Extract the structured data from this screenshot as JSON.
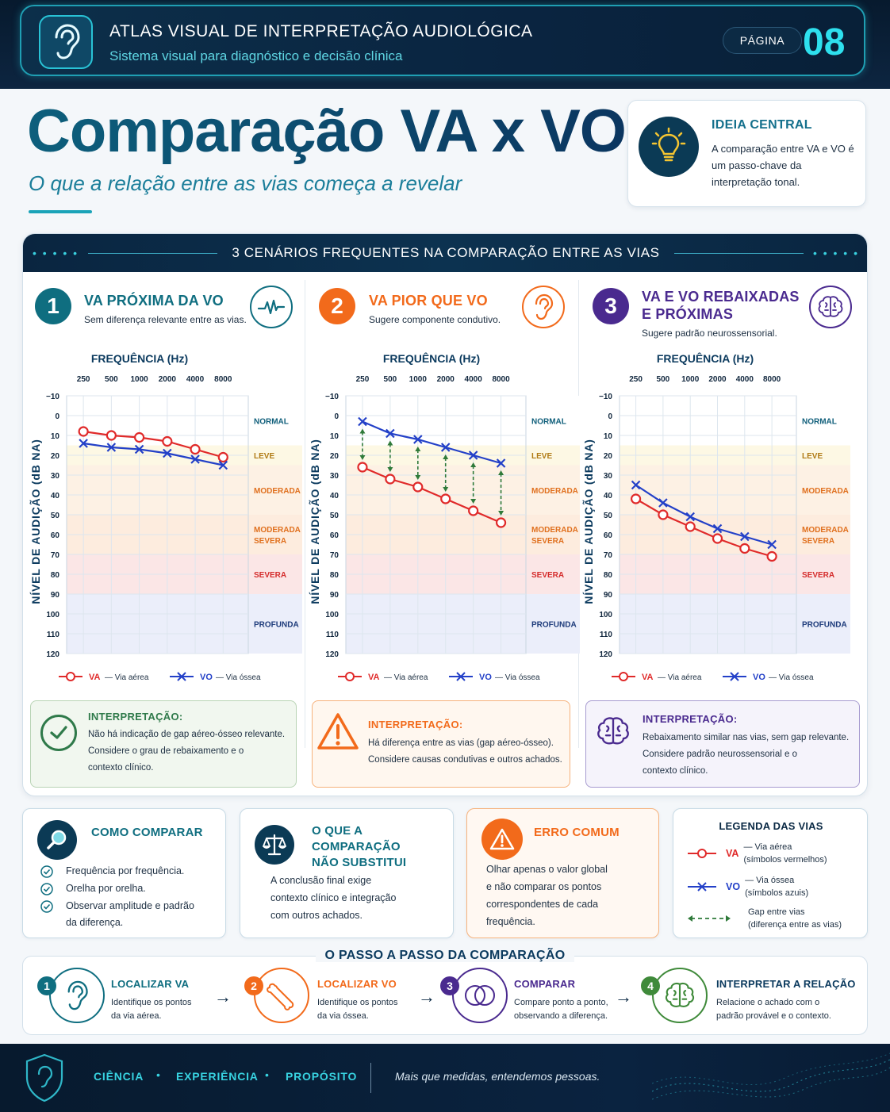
{
  "header": {
    "title": "ATLAS VISUAL DE INTERPRETAÇÃO AUDIOLÓGICA",
    "subtitle": "Sistema visual para diagnóstico e decisão clínica",
    "page_label": "PÁGINA",
    "page_number": "08",
    "icon": "ear-icon"
  },
  "hero": {
    "title": "Comparação VA x VO",
    "subtitle": "O que a relação entre as vias começa a revelar"
  },
  "idea": {
    "title": "IDEIA CENTRAL",
    "text": "A comparação entre VA e VO é um passo-chave da interpretação tonal.",
    "icon": "lightbulb-icon"
  },
  "scenarios": {
    "heading": "3 CENÁRIOS FREQUENTES NA COMPARAÇÃO ENTRE AS VIAS",
    "items": [
      {
        "number": "1",
        "title_lines": [
          "VA PRÓXIMA DA VO"
        ],
        "description": "Sem diferença relevante entre as vias.",
        "icon": "waveform-icon",
        "color": "#0f6e80",
        "interpretation_title": "INTERPRETAÇÃO:",
        "interpretation_lines": [
          "Não há indicação de gap aéreo-ósseo relevante.",
          "Considere o grau de rebaixamento e o",
          "contexto clínico."
        ],
        "interpretation_icon": "check-circle-icon"
      },
      {
        "number": "2",
        "title_lines": [
          "VA PIOR QUE VO"
        ],
        "description": "Sugere componente condutivo.",
        "icon": "ear-icon",
        "color": "#f26a1b",
        "interpretation_title": "INTERPRETAÇÃO:",
        "interpretation_lines": [
          "Há diferença entre as vias (gap aéreo-ósseo).",
          "Considere causas condutivas e outros achados."
        ],
        "interpretation_icon": "warning-icon"
      },
      {
        "number": "3",
        "title_lines": [
          "VA E VO REBAIXADAS",
          "E PRÓXIMAS"
        ],
        "description": "Sugere padrão neurossensorial.",
        "icon": "brain-icon",
        "color": "#4a2a8f",
        "interpretation_title": "INTERPRETAÇÃO:",
        "interpretation_lines": [
          "Rebaixamento similar nas vias, sem gap relevante.",
          "Considere padrão neurossensorial e o",
          "contexto clínico."
        ],
        "interpretation_icon": "brain-icon"
      }
    ]
  },
  "chart_data": [
    {
      "type": "line",
      "title": "FREQUÊNCIA (Hz)",
      "xlabel": "FREQUÊNCIA (Hz)",
      "ylabel": "NÍVEL DE AUDIÇÃO (dB NA)",
      "categories": [
        "250",
        "500",
        "1000",
        "2000",
        "4000",
        "8000"
      ],
      "y_ticks": [
        "−10",
        "0",
        "10",
        "20",
        "30",
        "40",
        "50",
        "60",
        "70",
        "80",
        "90",
        "100",
        "110",
        "120"
      ],
      "ylim": [
        -10,
        120
      ],
      "y_inverted": true,
      "grid": true,
      "bands": [
        {
          "label": "NORMAL",
          "from": -10,
          "to": 15,
          "color": "#ffffff",
          "text_color": "#0f5e7a"
        },
        {
          "label": "LEVE",
          "from": 15,
          "to": 25,
          "color": "#fdf8e4",
          "text_color": "#b07a14"
        },
        {
          "label": "MODERADA",
          "from": 25,
          "to": 50,
          "color": "#fdf1e4",
          "text_color": "#e0701e"
        },
        {
          "label": "MODERADA\nSEVERA",
          "from": 50,
          "to": 70,
          "color": "#fdecde",
          "text_color": "#e0701e"
        },
        {
          "label": "SEVERA",
          "from": 70,
          "to": 90,
          "color": "#fbe6e6",
          "text_color": "#d42b2b"
        },
        {
          "label": "PROFUNDA",
          "from": 90,
          "to": 120,
          "color": "#ebeefa",
          "text_color": "#1c3a7a"
        }
      ],
      "series": [
        {
          "name": "VA",
          "values": [
            8,
            10,
            11,
            13,
            17,
            21
          ],
          "color": "#e02a2a",
          "marker": "circle"
        },
        {
          "name": "VO",
          "values": [
            14,
            16,
            17,
            19,
            22,
            25
          ],
          "color": "#2340c8",
          "marker": "x"
        }
      ],
      "gap_arrows": false,
      "legend": [
        {
          "symbol": "VA",
          "label": "— Via aérea"
        },
        {
          "symbol": "VO",
          "label": "— Via óssea"
        }
      ],
      "legend_position": "bottom"
    },
    {
      "type": "line",
      "title": "FREQUÊNCIA (Hz)",
      "xlabel": "FREQUÊNCIA (Hz)",
      "ylabel": "NÍVEL DE AUDIÇÃO (dB NA)",
      "categories": [
        "250",
        "500",
        "1000",
        "2000",
        "4000",
        "8000"
      ],
      "y_ticks": [
        "−10",
        "0",
        "10",
        "20",
        "30",
        "40",
        "50",
        "60",
        "70",
        "80",
        "90",
        "100",
        "110",
        "120"
      ],
      "ylim": [
        -10,
        120
      ],
      "y_inverted": true,
      "grid": true,
      "bands": [
        {
          "label": "NORMAL",
          "from": -10,
          "to": 15,
          "color": "#ffffff",
          "text_color": "#0f5e7a"
        },
        {
          "label": "LEVE",
          "from": 15,
          "to": 25,
          "color": "#fdf8e4",
          "text_color": "#b07a14"
        },
        {
          "label": "MODERADA",
          "from": 25,
          "to": 50,
          "color": "#fdf1e4",
          "text_color": "#e0701e"
        },
        {
          "label": "MODERADA\nSEVERA",
          "from": 50,
          "to": 70,
          "color": "#fdecde",
          "text_color": "#e0701e"
        },
        {
          "label": "SEVERA",
          "from": 70,
          "to": 90,
          "color": "#fbe6e6",
          "text_color": "#d42b2b"
        },
        {
          "label": "PROFUNDA",
          "from": 90,
          "to": 120,
          "color": "#ebeefa",
          "text_color": "#1c3a7a"
        }
      ],
      "series": [
        {
          "name": "VA",
          "values": [
            26,
            32,
            36,
            42,
            48,
            54
          ],
          "color": "#e02a2a",
          "marker": "circle"
        },
        {
          "name": "VO",
          "values": [
            3,
            9,
            12,
            16,
            20,
            24
          ],
          "color": "#2340c8",
          "marker": "x"
        }
      ],
      "gap_arrows": true,
      "legend": [
        {
          "symbol": "VA",
          "label": "— Via aérea"
        },
        {
          "symbol": "VO",
          "label": "— Via óssea"
        }
      ],
      "legend_position": "bottom"
    },
    {
      "type": "line",
      "title": "FREQUÊNCIA (Hz)",
      "xlabel": "FREQUÊNCIA (Hz)",
      "ylabel": "NÍVEL DE AUDIÇÃO (dB NA)",
      "categories": [
        "250",
        "500",
        "1000",
        "2000",
        "4000",
        "8000"
      ],
      "y_ticks": [
        "−10",
        "0",
        "10",
        "20",
        "30",
        "40",
        "50",
        "60",
        "70",
        "80",
        "90",
        "100",
        "110",
        "120"
      ],
      "ylim": [
        -10,
        120
      ],
      "y_inverted": true,
      "grid": true,
      "bands": [
        {
          "label": "NORMAL",
          "from": -10,
          "to": 15,
          "color": "#ffffff",
          "text_color": "#0f5e7a"
        },
        {
          "label": "LEVE",
          "from": 15,
          "to": 25,
          "color": "#fdf8e4",
          "text_color": "#b07a14"
        },
        {
          "label": "MODERADA",
          "from": 25,
          "to": 50,
          "color": "#fdf1e4",
          "text_color": "#e0701e"
        },
        {
          "label": "MODERADA\nSEVERA",
          "from": 50,
          "to": 70,
          "color": "#fdecde",
          "text_color": "#e0701e"
        },
        {
          "label": "SEVERA",
          "from": 70,
          "to": 90,
          "color": "#fbe6e6",
          "text_color": "#d42b2b"
        },
        {
          "label": "PROFUNDA",
          "from": 90,
          "to": 120,
          "color": "#ebeefa",
          "text_color": "#1c3a7a"
        }
      ],
      "series": [
        {
          "name": "VA",
          "values": [
            42,
            50,
            56,
            62,
            67,
            71
          ],
          "color": "#e02a2a",
          "marker": "circle"
        },
        {
          "name": "VO",
          "values": [
            35,
            44,
            51,
            57,
            61,
            65
          ],
          "color": "#2340c8",
          "marker": "x"
        }
      ],
      "gap_arrows": false,
      "legend": [
        {
          "symbol": "VA",
          "label": "— Via aérea"
        },
        {
          "symbol": "VO",
          "label": "— Via óssea"
        }
      ],
      "legend_position": "bottom"
    }
  ],
  "cards": {
    "compare": {
      "title": "COMO COMPARAR",
      "icon": "magnifier-icon",
      "items": [
        "Frequência por frequência.",
        "Orelha por orelha.",
        "Observar amplitude e padrão",
        "da diferença."
      ]
    },
    "not_replace": {
      "title_lines": [
        "O QUE A COMPARAÇÃO",
        "NÃO SUBSTITUI"
      ],
      "icon": "scales-icon",
      "lines": [
        "A conclusão final exige",
        "contexto clínico e integração",
        "com outros achados."
      ]
    },
    "error": {
      "title": "ERRO COMUM",
      "icon": "warning-icon",
      "lines": [
        "Olhar apenas o valor global",
        "e não comparar os pontos",
        "correspondentes de cada",
        "frequência."
      ]
    },
    "legend": {
      "title": "LEGENDA DAS VIAS",
      "va": {
        "symbol": "VA",
        "line1": "— Via aérea",
        "line2": "(símbolos vermelhos)"
      },
      "vo": {
        "symbol": "VO",
        "line1": "— Via óssea",
        "line2": "(símbolos azuis)"
      },
      "gap": {
        "line1": "Gap entre vias",
        "line2": "(diferença entre as vias)"
      }
    }
  },
  "steps": {
    "title": "O PASSO A PASSO DA COMPARAÇÃO",
    "items": [
      {
        "number": "1",
        "title": "LOCALIZAR VA",
        "lines": [
          "Identifique os pontos",
          "da via aérea."
        ],
        "icon": "ear-icon",
        "color": "#0f6e80"
      },
      {
        "number": "2",
        "title": "LOCALIZAR VO",
        "lines": [
          "Identifique os pontos",
          "da via óssea."
        ],
        "icon": "bone-icon",
        "color": "#f26a1b"
      },
      {
        "number": "3",
        "title": "COMPARAR",
        "lines": [
          "Compare ponto a ponto,",
          "observando a diferença."
        ],
        "icon": "overlap-circles-icon",
        "color": "#4a2a8f"
      },
      {
        "number": "4",
        "title": "INTERPRETAR A RELAÇÃO",
        "lines": [
          "Relacione o achado com o",
          "padrão provável e o contexto."
        ],
        "icon": "brain-icon",
        "color": "#3f8a3a"
      }
    ]
  },
  "footer": {
    "words": [
      "CIÊNCIA",
      "EXPERIÊNCIA",
      "PROPÓSITO"
    ],
    "tagline": "Mais que medidas, entendemos pessoas.",
    "icon": "shield-ear-icon"
  }
}
